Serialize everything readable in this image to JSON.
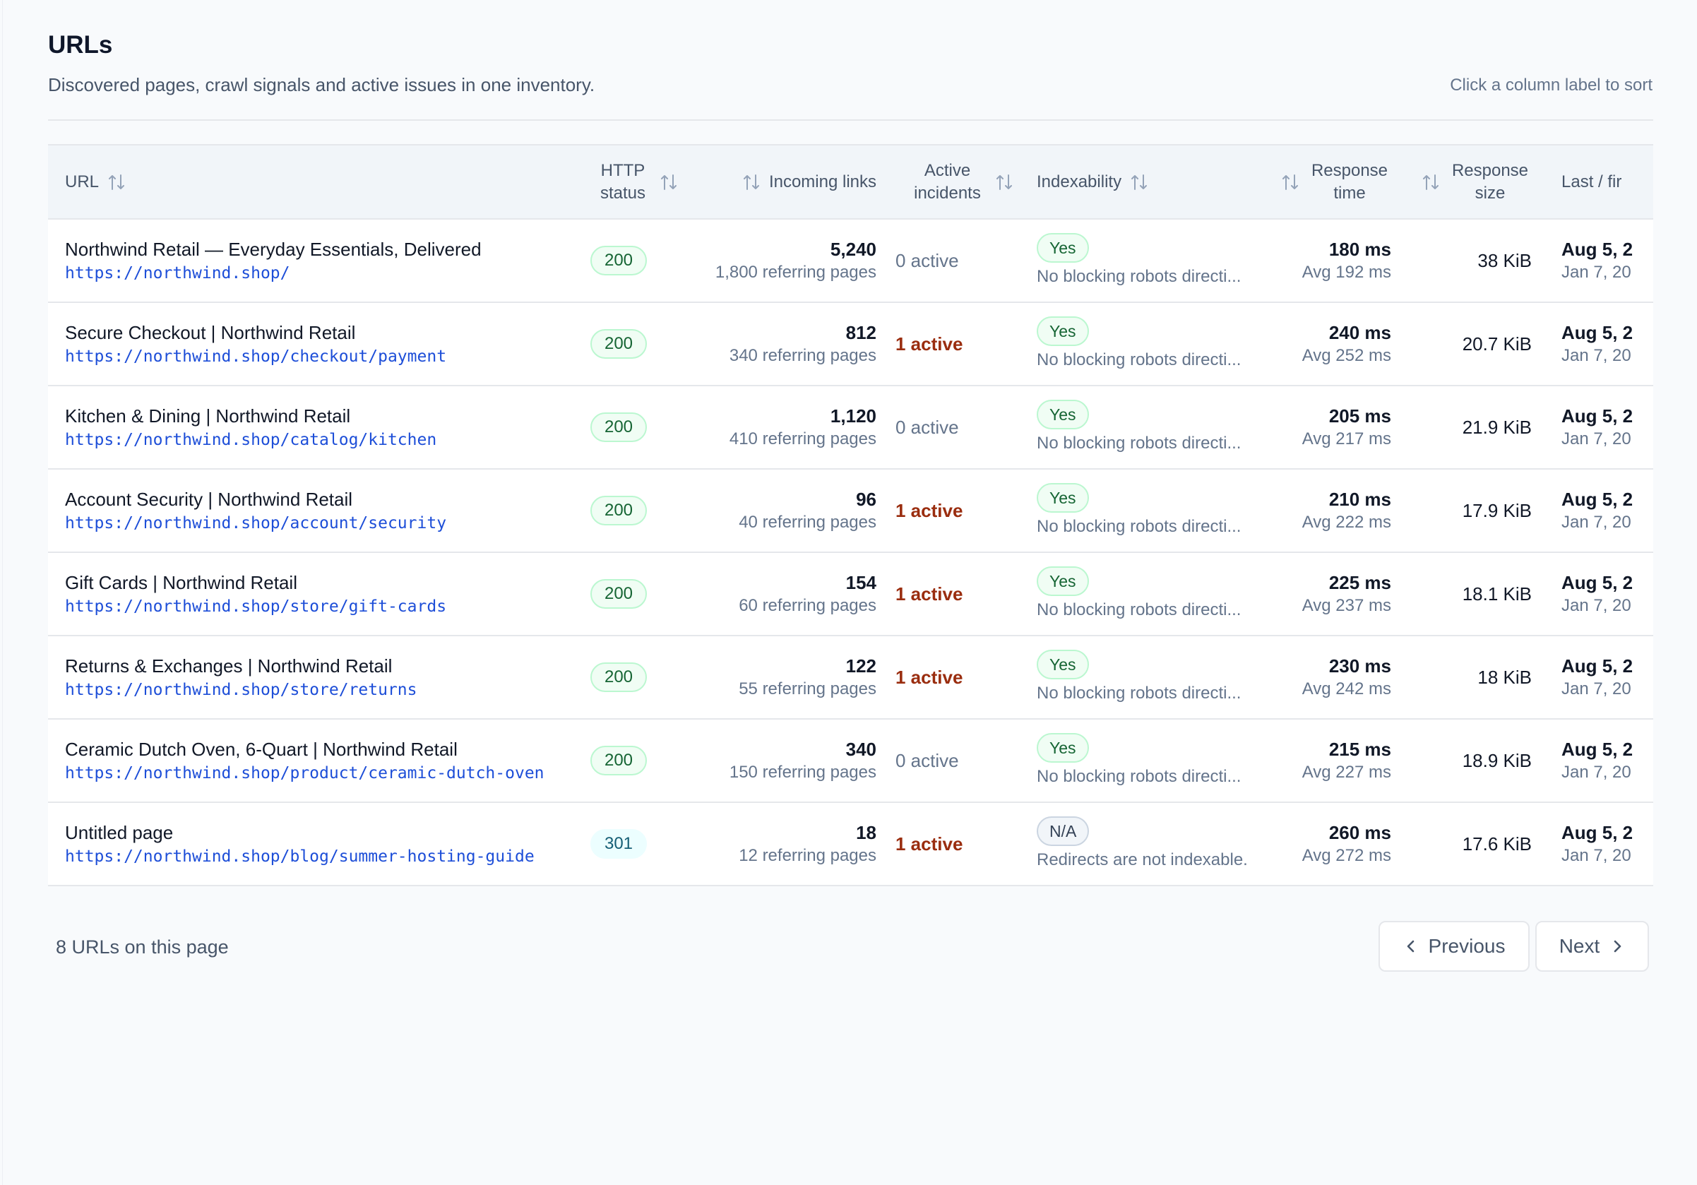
{
  "header": {
    "title": "URLs",
    "subtitle": "Discovered pages, crawl signals and active issues in one inventory.",
    "hint": "Click a column label to sort"
  },
  "columns": {
    "url": "URL",
    "http_status": "HTTP status",
    "incoming_links": "Incoming links",
    "active_incidents": "Active incidents",
    "indexability": "Indexability",
    "response_time": "Response time",
    "response_size": "Response size",
    "last_first": "Last / fir"
  },
  "rows": [
    {
      "title": "Northwind Retail — Everyday Essentials, Delivered",
      "url": "https://northwind.shop/",
      "status": "200",
      "links": "5,240",
      "referring": "1,800 referring pages",
      "incidents": "0 active",
      "incidents_count": 0,
      "indexable": "Yes",
      "index_note": "No blocking robots directi...",
      "rt": "180 ms",
      "rt_avg": "Avg 192 ms",
      "size": "38 KiB",
      "last": "Aug 5, 2",
      "first": "Jan 7, 20"
    },
    {
      "title": "Secure Checkout | Northwind Retail",
      "url": "https://northwind.shop/checkout/payment",
      "status": "200",
      "links": "812",
      "referring": "340 referring pages",
      "incidents": "1 active",
      "incidents_count": 1,
      "indexable": "Yes",
      "index_note": "No blocking robots directi...",
      "rt": "240 ms",
      "rt_avg": "Avg 252 ms",
      "size": "20.7 KiB",
      "last": "Aug 5, 2",
      "first": "Jan 7, 20"
    },
    {
      "title": "Kitchen & Dining | Northwind Retail",
      "url": "https://northwind.shop/catalog/kitchen",
      "status": "200",
      "links": "1,120",
      "referring": "410 referring pages",
      "incidents": "0 active",
      "incidents_count": 0,
      "indexable": "Yes",
      "index_note": "No blocking robots directi...",
      "rt": "205 ms",
      "rt_avg": "Avg 217 ms",
      "size": "21.9 KiB",
      "last": "Aug 5, 2",
      "first": "Jan 7, 20"
    },
    {
      "title": "Account Security | Northwind Retail",
      "url": "https://northwind.shop/account/security",
      "status": "200",
      "links": "96",
      "referring": "40 referring pages",
      "incidents": "1 active",
      "incidents_count": 1,
      "indexable": "Yes",
      "index_note": "No blocking robots directi...",
      "rt": "210 ms",
      "rt_avg": "Avg 222 ms",
      "size": "17.9 KiB",
      "last": "Aug 5, 2",
      "first": "Jan 7, 20"
    },
    {
      "title": "Gift Cards | Northwind Retail",
      "url": "https://northwind.shop/store/gift-cards",
      "status": "200",
      "links": "154",
      "referring": "60 referring pages",
      "incidents": "1 active",
      "incidents_count": 1,
      "indexable": "Yes",
      "index_note": "No blocking robots directi...",
      "rt": "225 ms",
      "rt_avg": "Avg 237 ms",
      "size": "18.1 KiB",
      "last": "Aug 5, 2",
      "first": "Jan 7, 20"
    },
    {
      "title": "Returns & Exchanges | Northwind Retail",
      "url": "https://northwind.shop/store/returns",
      "status": "200",
      "links": "122",
      "referring": "55 referring pages",
      "incidents": "1 active",
      "incidents_count": 1,
      "indexable": "Yes",
      "index_note": "No blocking robots directi...",
      "rt": "230 ms",
      "rt_avg": "Avg 242 ms",
      "size": "18 KiB",
      "last": "Aug 5, 2",
      "first": "Jan 7, 20"
    },
    {
      "title": "Ceramic Dutch Oven, 6-Quart | Northwind Retail",
      "url": "https://northwind.shop/product/ceramic-dutch-oven",
      "status": "200",
      "links": "340",
      "referring": "150 referring pages",
      "incidents": "0 active",
      "incidents_count": 0,
      "indexable": "Yes",
      "index_note": "No blocking robots directi...",
      "rt": "215 ms",
      "rt_avg": "Avg 227 ms",
      "size": "18.9 KiB",
      "last": "Aug 5, 2",
      "first": "Jan 7, 20"
    },
    {
      "title": "Untitled page",
      "url": "https://northwind.shop/blog/summer-hosting-guide",
      "status": "301",
      "links": "18",
      "referring": "12 referring pages",
      "incidents": "1 active",
      "incidents_count": 1,
      "indexable": "N/A",
      "index_note": "Redirects are not indexable.",
      "rt": "260 ms",
      "rt_avg": "Avg 272 ms",
      "size": "17.6 KiB",
      "last": "Aug 5, 2",
      "first": "Jan 7, 20"
    }
  ],
  "footer": {
    "count": "8 URLs on this page",
    "previous": "Previous",
    "next": "Next"
  },
  "colors": {
    "link": "#1d4ed8",
    "incident_active": "#9a2d0f",
    "ok_badge": "#166534",
    "redirect_badge": "#155e75"
  },
  "icons": [
    "sort-icon",
    "chevron-left-icon",
    "chevron-right-icon"
  ]
}
